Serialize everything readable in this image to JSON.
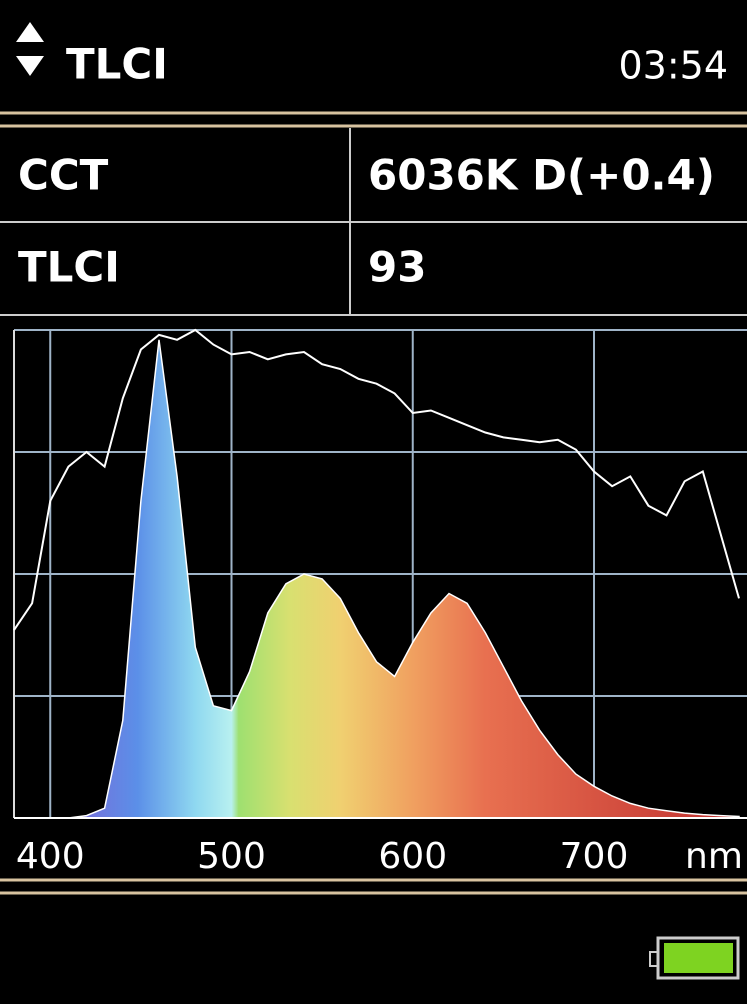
{
  "header": {
    "title": "TLCI",
    "time": "03:54"
  },
  "table": {
    "rows": [
      [
        "CCT",
        "6036K D(+0.4)"
      ],
      [
        "TLCI",
        "93"
      ]
    ]
  },
  "chart_data": {
    "type": "line",
    "x": [
      380,
      390,
      400,
      410,
      420,
      430,
      440,
      450,
      460,
      470,
      480,
      490,
      500,
      510,
      520,
      530,
      540,
      550,
      560,
      570,
      580,
      590,
      600,
      610,
      620,
      630,
      640,
      650,
      660,
      670,
      680,
      690,
      700,
      710,
      720,
      730,
      740,
      750,
      760,
      770,
      780
    ],
    "series": [
      {
        "color": "#ffffff",
        "fill": true,
        "values": [
          0,
          0,
          0,
          0,
          0.5,
          2,
          20,
          65,
          98,
          70,
          35,
          23,
          22,
          30,
          42,
          48,
          50,
          49,
          45,
          38,
          32,
          29,
          36,
          42,
          46,
          44,
          38,
          31,
          24,
          18,
          13,
          9,
          6.5,
          4.5,
          3,
          2,
          1.5,
          1,
          0.7,
          0.5,
          0.3
        ]
      },
      {
        "color": "#ffffff",
        "fill": false,
        "values": [
          38.5,
          44,
          65,
          72,
          75,
          72,
          86,
          96,
          99,
          98,
          100,
          97,
          95,
          95.5,
          94,
          95,
          95.5,
          93,
          92,
          90,
          89,
          87,
          83,
          83.5,
          82,
          80.5,
          79,
          78,
          77.5,
          77,
          77.5,
          75.5,
          71,
          68,
          70,
          64,
          62,
          69,
          71,
          58,
          45
        ]
      }
    ],
    "xlim": [
      380,
      780
    ],
    "xticks": [
      400,
      500,
      600,
      700
    ],
    "x_label": "nm",
    "ylim": [
      0,
      100
    ],
    "yticks": [
      0,
      25,
      50,
      75,
      100
    ],
    "grid": true,
    "grid_color": "#9fb4c8"
  }
}
